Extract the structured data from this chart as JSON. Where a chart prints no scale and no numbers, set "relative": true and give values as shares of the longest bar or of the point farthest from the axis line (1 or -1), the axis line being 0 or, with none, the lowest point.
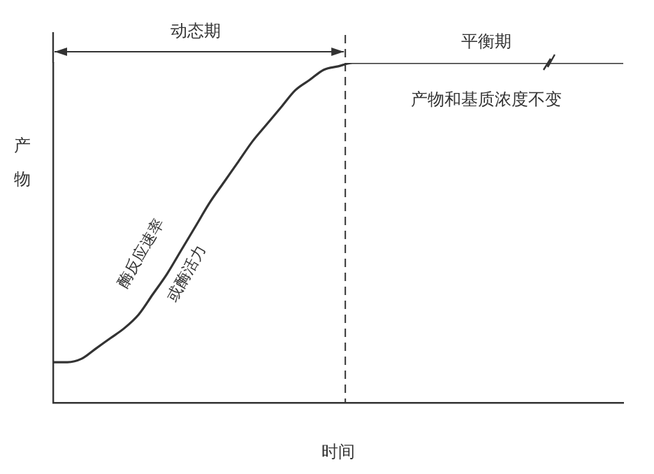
{
  "chart_data": {
    "type": "line",
    "relative": true,
    "xlabel": "时间",
    "ylabel": "产物",
    "grid": false,
    "legend": false,
    "marker": "none",
    "line_style": "solid",
    "categories": [
      null,
      null,
      null,
      null,
      null,
      null,
      null,
      null,
      null,
      null,
      null,
      null,
      null,
      null,
      null,
      null,
      null,
      null,
      null,
      null,
      null,
      null,
      null,
      null,
      null,
      null,
      null,
      null,
      null,
      null,
      null,
      null,
      null,
      null,
      null,
      null,
      null,
      null,
      null,
      null,
      null
    ],
    "series": [
      {
        "color": "#333333",
        "values": [
          0.12,
          0.12,
          0.13,
          0.16,
          0.19,
          0.22,
          0.26,
          0.32,
          0.38,
          0.45,
          0.52,
          0.59,
          0.65,
          0.71,
          0.77,
          0.82,
          0.87,
          0.92,
          0.95,
          0.98,
          0.99,
          1,
          1,
          1,
          1,
          1,
          1,
          1,
          1,
          1,
          1,
          1,
          1,
          1,
          1,
          1,
          1,
          1,
          1,
          1,
          1
        ]
      }
    ],
    "annotations": [
      "动态期",
      "平衡期",
      "产物和基质浓度不变",
      "酶反应速率",
      "或酶活力"
    ]
  }
}
